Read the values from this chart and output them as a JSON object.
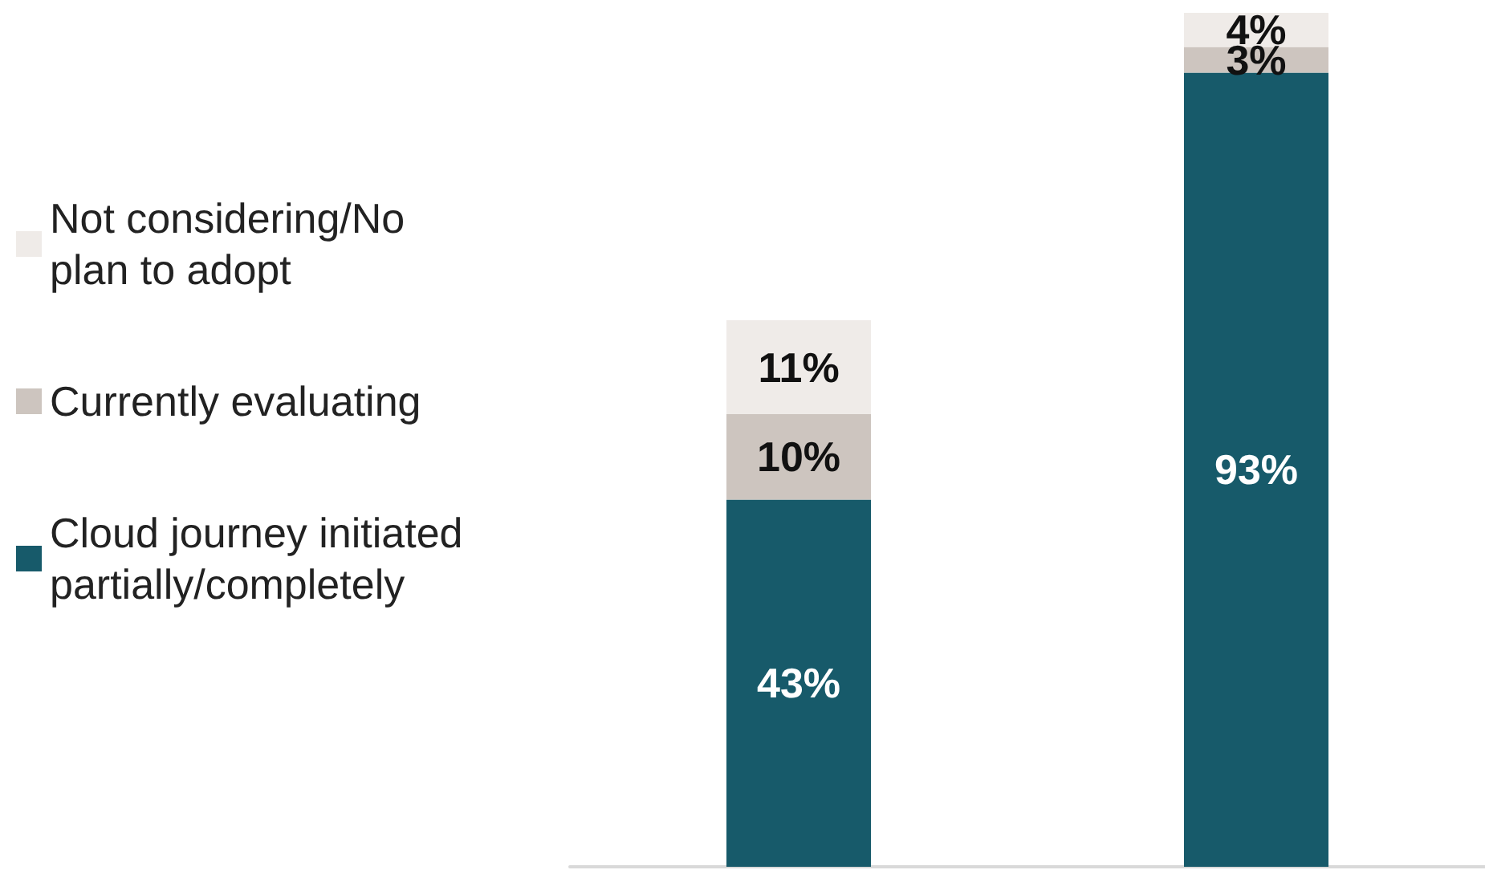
{
  "chart_data": {
    "type": "bar",
    "stacked": true,
    "categories": [
      null,
      null
    ],
    "series": [
      {
        "name": "Cloud journey initiated partially/completely",
        "color": "#175a6a",
        "values": [
          43,
          93
        ],
        "value_labels": [
          "43%",
          "93%"
        ]
      },
      {
        "name": "Currently evaluating",
        "color": "#cdc5bf",
        "values": [
          10,
          3
        ],
        "value_labels": [
          "10%",
          "3%"
        ]
      },
      {
        "name": "Not considering/No plan to adopt",
        "color": "#efebe8",
        "values": [
          11,
          4
        ],
        "value_labels": [
          "11%",
          "4%"
        ]
      }
    ],
    "legend": "left",
    "grid": false,
    "tick_labels": false
  }
}
